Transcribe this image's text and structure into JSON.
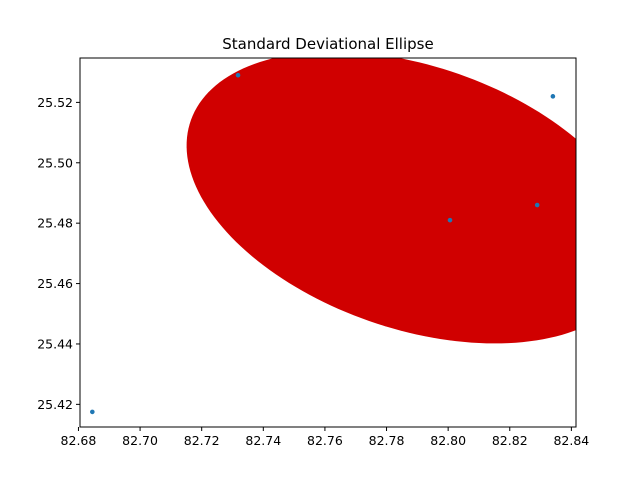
{
  "chart_data": {
    "type": "scatter",
    "title": "Standard Deviational Ellipse",
    "xlabel": "",
    "ylabel": "",
    "xlim": [
      82.6805,
      82.8415
    ],
    "ylim": [
      25.4125,
      25.5347
    ],
    "xticks": [
      82.68,
      82.7,
      82.72,
      82.74,
      82.76,
      82.78,
      82.8,
      82.82,
      82.84
    ],
    "xtick_labels": [
      "82.68",
      "82.70",
      "82.72",
      "82.74",
      "82.76",
      "82.78",
      "82.80",
      "82.82",
      "82.84"
    ],
    "yticks": [
      25.42,
      25.44,
      25.46,
      25.48,
      25.5,
      25.52
    ],
    "ytick_labels": [
      "25.42",
      "25.44",
      "25.46",
      "25.48",
      "25.50",
      "25.52"
    ],
    "grid": false,
    "points": [
      {
        "x": 82.6845,
        "y": 25.4175
      },
      {
        "x": 82.7318,
        "y": 25.529
      },
      {
        "x": 82.8006,
        "y": 25.481
      },
      {
        "x": 82.8289,
        "y": 25.486
      },
      {
        "x": 82.834,
        "y": 25.522
      }
    ],
    "point_color": "#1f77b4",
    "ellipse": {
      "center_x": 82.7889,
      "center_y": 25.4885,
      "semi_major": 0.0768,
      "semi_minor": 0.0434,
      "rotation_deg": -19.6,
      "color": "#d00000"
    }
  }
}
